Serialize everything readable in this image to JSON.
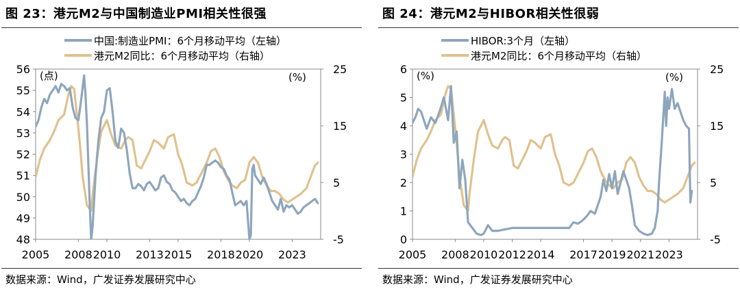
{
  "charts": [
    {
      "fig_title": "图 23：港元M2与中国制造业PMI相关性很强",
      "source": "数据来源：Wind，广发证券发展研究中心",
      "left_unit": "(点)",
      "right_unit": "(%)",
      "series": [
        {
          "name": "中国:制造业PMI：6个月移动平均（左轴）",
          "color": "#8EA6BD",
          "axis": "left"
        },
        {
          "name": "港元M2同比：6个月移动平均（右轴）",
          "color": "#E0C18E",
          "axis": "right"
        }
      ],
      "colors": {
        "series_left": "#8EA6BD",
        "series_right": "#E0C18E",
        "text": "#000000",
        "rule": "#333333"
      },
      "chart_data": {
        "type": "line",
        "x_ticks": [
          "2005",
          "2008",
          "2010",
          "2013",
          "2015",
          "2018",
          "2020",
          "2023"
        ],
        "x_range": [
          2005.0,
          2025.0
        ],
        "left_axis": {
          "ticks": [
            48,
            49,
            50,
            51,
            52,
            53,
            54,
            55,
            56
          ],
          "range": [
            48,
            56
          ]
        },
        "right_axis": {
          "ticks": [
            -5,
            5,
            15,
            25
          ],
          "range": [
            -5,
            25
          ]
        },
        "grid": false,
        "legend_position": "top-center",
        "series": [
          {
            "name": "中国:制造业PMI：6个月移动平均（左轴）",
            "axis": "left",
            "x": [
              2005.0,
              2005.2,
              2005.4,
              2005.6,
              2005.8,
              2006.0,
              2006.2,
              2006.4,
              2006.6,
              2006.8,
              2007.0,
              2007.2,
              2007.4,
              2007.6,
              2007.8,
              2008.0,
              2008.2,
              2008.4,
              2008.5,
              2008.6,
              2008.7,
              2008.8,
              2008.9,
              2009.0,
              2009.2,
              2009.4,
              2009.6,
              2009.8,
              2010.0,
              2010.2,
              2010.4,
              2010.6,
              2010.8,
              2011.0,
              2011.2,
              2011.4,
              2011.6,
              2011.8,
              2012.0,
              2012.2,
              2012.4,
              2012.6,
              2012.8,
              2013.0,
              2013.2,
              2013.4,
              2013.6,
              2013.8,
              2014.0,
              2014.2,
              2014.4,
              2014.6,
              2014.8,
              2015.0,
              2015.2,
              2015.4,
              2015.6,
              2015.8,
              2016.0,
              2016.2,
              2016.4,
              2016.6,
              2016.8,
              2017.0,
              2017.2,
              2017.4,
              2017.6,
              2017.8,
              2018.0,
              2018.2,
              2018.4,
              2018.6,
              2018.8,
              2019.0,
              2019.2,
              2019.4,
              2019.6,
              2019.8,
              2020.0,
              2020.1,
              2020.2,
              2020.3,
              2020.4,
              2020.6,
              2020.8,
              2021.0,
              2021.2,
              2021.4,
              2021.6,
              2021.8,
              2022.0,
              2022.2,
              2022.4,
              2022.6,
              2022.8,
              2023.0,
              2023.2,
              2023.4,
              2023.6,
              2023.8,
              2024.0,
              2024.2,
              2024.4,
              2024.6,
              2024.8
            ],
            "values": [
              53.3,
              53.6,
              54.2,
              54.6,
              54.4,
              54.8,
              55.0,
              55.2,
              54.9,
              55.3,
              55.2,
              55.0,
              55.1,
              54.2,
              53.7,
              53.6,
              54.6,
              55.7,
              54.8,
              53.4,
              51.5,
              49.6,
              48.0,
              48.6,
              51.0,
              52.6,
              53.7,
              54.0,
              55.0,
              55.1,
              54.0,
              52.6,
              52.3,
              53.2,
              53.0,
              52.2,
              51.1,
              50.4,
              50.4,
              50.6,
              50.5,
              50.3,
              50.6,
              50.7,
              50.5,
              50.3,
              50.4,
              50.9,
              51.0,
              50.7,
              50.6,
              50.3,
              50.2,
              50.0,
              49.8,
              49.9,
              49.7,
              49.6,
              49.8,
              49.9,
              50.2,
              50.5,
              50.9,
              51.5,
              51.5,
              51.6,
              51.7,
              51.6,
              51.4,
              51.3,
              51.0,
              50.8,
              50.2,
              49.6,
              49.7,
              49.8,
              49.6,
              49.8,
              48.0,
              48.2,
              51.3,
              51.5,
              51.0,
              50.8,
              50.6,
              50.9,
              50.6,
              50.2,
              49.8,
              49.6,
              49.4,
              49.9,
              49.3,
              49.6,
              49.5,
              49.6,
              49.4,
              49.2,
              49.3,
              49.5,
              49.6,
              49.7,
              49.8,
              49.9,
              49.7
            ]
          },
          {
            "name": "港元M2同比：6个月移动平均（右轴）",
            "axis": "right",
            "x": [
              2005.0,
              2005.3,
              2005.6,
              2006.0,
              2006.3,
              2006.6,
              2007.0,
              2007.3,
              2007.5,
              2007.7,
              2007.9,
              2008.1,
              2008.3,
              2008.6,
              2008.9,
              2009.0,
              2009.3,
              2009.6,
              2010.0,
              2010.3,
              2010.6,
              2011.0,
              2011.3,
              2011.5,
              2011.8,
              2012.1,
              2012.4,
              2012.7,
              2013.0,
              2013.3,
              2013.6,
              2014.0,
              2014.3,
              2014.7,
              2015.0,
              2015.3,
              2015.6,
              2016.0,
              2016.3,
              2016.6,
              2017.0,
              2017.3,
              2017.6,
              2017.9,
              2018.2,
              2018.5,
              2018.8,
              2019.1,
              2019.4,
              2019.7,
              2020.0,
              2020.3,
              2020.6,
              2020.9,
              2021.2,
              2021.5,
              2021.8,
              2022.1,
              2022.4,
              2022.7,
              2023.0,
              2023.3,
              2023.6,
              2024.0,
              2024.3,
              2024.6,
              2024.8
            ],
            "values": [
              6.0,
              9.0,
              11.0,
              12.5,
              14.0,
              16.0,
              17.0,
              20.5,
              22.0,
              21.5,
              17.0,
              12.0,
              6.0,
              1.0,
              0.0,
              3.0,
              9.0,
              14.0,
              16.0,
              13.5,
              11.5,
              11.0,
              12.5,
              13.0,
              12.5,
              8.0,
              7.5,
              9.0,
              10.5,
              12.5,
              12.0,
              11.0,
              13.0,
              13.5,
              10.0,
              8.0,
              5.0,
              4.5,
              5.0,
              6.5,
              8.5,
              10.5,
              11.0,
              9.5,
              7.0,
              5.5,
              4.5,
              4.0,
              5.0,
              5.5,
              8.5,
              9.5,
              8.5,
              6.0,
              4.5,
              3.5,
              3.5,
              3.0,
              2.0,
              1.5,
              2.0,
              2.5,
              3.0,
              4.0,
              6.0,
              8.0,
              8.5
            ]
          }
        ]
      }
    },
    {
      "fig_title": "图 24：港元M2与HIBOR相关性很弱",
      "source": "数据来源：Wind，广发证券发展研究中心",
      "left_unit": "(%)",
      "right_unit": "(%)",
      "series": [
        {
          "name": "HIBOR:3个月（左轴）",
          "color": "#8EA6BD",
          "axis": "left"
        },
        {
          "name": "港元M2同比：6个月移动平均（右轴）",
          "color": "#E0C18E",
          "axis": "right"
        }
      ],
      "colors": {
        "series_left": "#8EA6BD",
        "series_right": "#E0C18E",
        "text": "#000000",
        "rule": "#333333"
      },
      "chart_data": {
        "type": "line",
        "x_ticks": [
          "2005",
          "2008",
          "2010",
          "2012",
          "2014",
          "2017",
          "2019",
          "2021",
          "2023"
        ],
        "x_range": [
          2005.0,
          2025.0
        ],
        "left_axis": {
          "ticks": [
            0,
            1,
            2,
            3,
            4,
            5,
            6
          ],
          "range": [
            0,
            6
          ]
        },
        "right_axis": {
          "ticks": [
            -5,
            5,
            15,
            25
          ],
          "range": [
            -5,
            25
          ]
        },
        "grid": false,
        "legend_position": "top-center",
        "series": [
          {
            "name": "HIBOR:3个月（左轴）",
            "axis": "left",
            "x": [
              2005.0,
              2005.2,
              2005.4,
              2005.6,
              2005.8,
              2006.0,
              2006.3,
              2006.6,
              2006.9,
              2007.2,
              2007.5,
              2007.7,
              2007.9,
              2008.1,
              2008.3,
              2008.5,
              2008.7,
              2008.9,
              2009.2,
              2009.5,
              2009.8,
              2010.0,
              2010.3,
              2010.6,
              2011.0,
              2011.5,
              2012.0,
              2012.5,
              2013.0,
              2013.5,
              2014.0,
              2014.5,
              2015.0,
              2015.5,
              2016.0,
              2016.3,
              2016.6,
              2016.9,
              2017.2,
              2017.5,
              2017.8,
              2018.0,
              2018.2,
              2018.4,
              2018.6,
              2018.8,
              2019.0,
              2019.2,
              2019.4,
              2019.6,
              2019.8,
              2020.0,
              2020.2,
              2020.4,
              2020.6,
              2020.9,
              2021.2,
              2021.5,
              2021.8,
              2022.0,
              2022.2,
              2022.3,
              2022.5,
              2022.7,
              2022.8,
              2022.9,
              2023.0,
              2023.2,
              2023.4,
              2023.6,
              2023.8,
              2024.0,
              2024.2,
              2024.4,
              2024.5,
              2024.6
            ],
            "values": [
              4.1,
              4.3,
              4.6,
              4.5,
              4.2,
              3.9,
              4.3,
              4.1,
              4.5,
              5.0,
              4.2,
              5.4,
              3.4,
              3.8,
              1.8,
              2.8,
              2.1,
              0.6,
              0.4,
              0.2,
              0.15,
              0.2,
              0.5,
              0.3,
              0.3,
              0.35,
              0.4,
              0.4,
              0.4,
              0.4,
              0.4,
              0.4,
              0.4,
              0.4,
              0.4,
              0.6,
              0.55,
              0.65,
              0.8,
              1.0,
              0.9,
              1.2,
              1.5,
              2.1,
              1.7,
              2.3,
              1.8,
              2.4,
              1.6,
              2.0,
              2.4,
              2.1,
              1.8,
              1.2,
              0.5,
              0.3,
              0.2,
              0.15,
              0.2,
              0.4,
              1.0,
              2.0,
              3.5,
              5.2,
              4.0,
              5.0,
              4.6,
              5.3,
              4.6,
              4.8,
              4.5,
              4.2,
              4.0,
              3.9,
              1.3,
              1.7
            ]
          },
          {
            "name": "港元M2同比：6个月移动平均（右轴）",
            "axis": "right",
            "x": [
              2005.0,
              2005.3,
              2005.6,
              2006.0,
              2006.3,
              2006.6,
              2007.0,
              2007.3,
              2007.5,
              2007.7,
              2007.9,
              2008.1,
              2008.3,
              2008.6,
              2008.9,
              2009.0,
              2009.3,
              2009.6,
              2010.0,
              2010.3,
              2010.6,
              2011.0,
              2011.3,
              2011.5,
              2011.8,
              2012.1,
              2012.4,
              2012.7,
              2013.0,
              2013.3,
              2013.6,
              2014.0,
              2014.3,
              2014.7,
              2015.0,
              2015.3,
              2015.6,
              2016.0,
              2016.3,
              2016.6,
              2017.0,
              2017.3,
              2017.6,
              2017.9,
              2018.2,
              2018.5,
              2018.8,
              2019.1,
              2019.4,
              2019.7,
              2020.0,
              2020.3,
              2020.6,
              2020.9,
              2021.2,
              2021.5,
              2021.8,
              2022.1,
              2022.4,
              2022.7,
              2023.0,
              2023.3,
              2023.6,
              2024.0,
              2024.3,
              2024.6,
              2024.8
            ],
            "values": [
              6.0,
              9.0,
              11.0,
              12.5,
              14.0,
              16.0,
              17.0,
              20.5,
              22.0,
              21.5,
              17.0,
              12.0,
              6.0,
              1.0,
              0.0,
              3.0,
              9.0,
              14.0,
              16.0,
              13.5,
              11.5,
              11.0,
              12.5,
              13.0,
              12.5,
              8.0,
              7.5,
              9.0,
              10.5,
              12.5,
              12.0,
              11.0,
              13.0,
              13.5,
              10.0,
              8.0,
              5.0,
              4.5,
              5.0,
              6.5,
              8.5,
              10.5,
              11.0,
              9.5,
              7.0,
              5.5,
              4.5,
              4.0,
              5.0,
              5.5,
              8.5,
              9.5,
              8.5,
              6.0,
              4.5,
              3.5,
              3.5,
              3.0,
              2.0,
              1.5,
              2.0,
              2.5,
              3.0,
              4.0,
              6.0,
              8.0,
              8.5
            ]
          }
        ]
      }
    }
  ]
}
